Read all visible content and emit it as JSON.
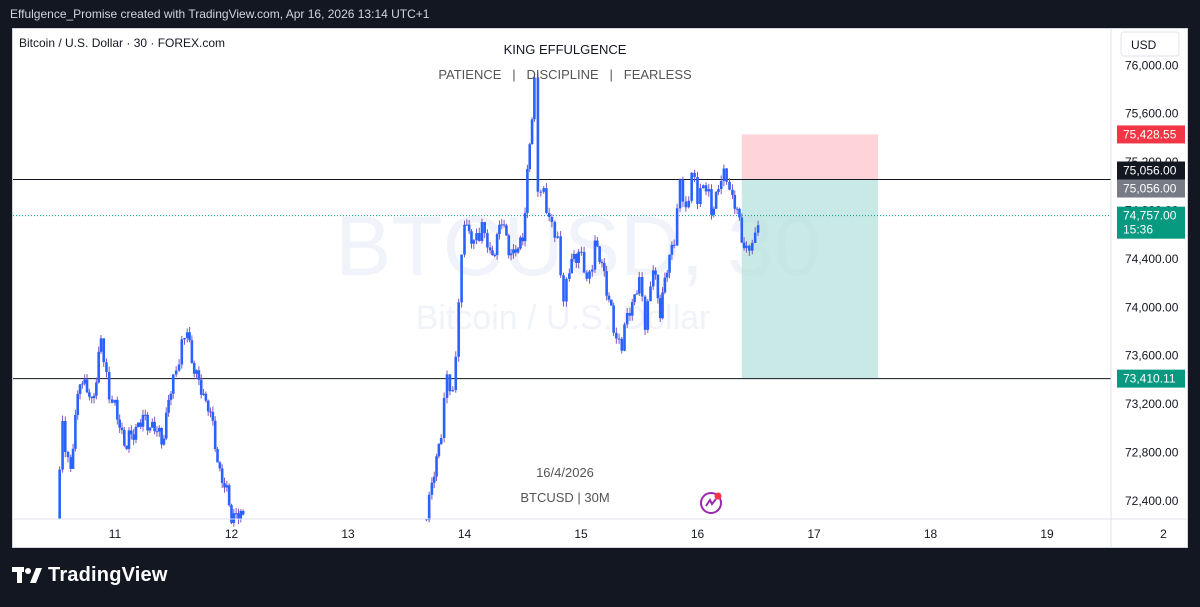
{
  "header": {
    "attribution": "Effulgence_Promise created with TradingView.com, Apr 16, 2026 13:14 UTC+1"
  },
  "symbol_info": "Bitcoin / U.S. Dollar · 30 · FOREX.com",
  "currency_button": "USD",
  "overlay": {
    "title": "KING EFFULGENCE",
    "subtitle": "PATIENCE   |   DISCIPLINE   |   FEARLESS",
    "date": "16/4/2026",
    "symbol_interval": "BTCUSD | 30M"
  },
  "watermark": {
    "ticker": "BTCUSD, 30",
    "name": "Bitcoin / U.S. Dollar"
  },
  "brand": {
    "name": "TradingView"
  },
  "colors": {
    "up": "#2962ff",
    "down": "#2962ff",
    "wick": "#7e57c2",
    "background": "#131722",
    "target_zone": "#b2dfdb",
    "stop_zone": "#ffcdd2",
    "label_red": "#f23645",
    "label_teal": "#089981",
    "label_black": "#131722",
    "label_gray": "#787b86"
  },
  "chart_data": {
    "type": "candlestick",
    "x_axis": {
      "ticks": [
        {
          "label": "11",
          "day": 11
        },
        {
          "label": "12",
          "day": 12
        },
        {
          "label": "13",
          "day": 13
        },
        {
          "label": "14",
          "day": 14
        },
        {
          "label": "15",
          "day": 15
        },
        {
          "label": "16",
          "day": 16
        },
        {
          "label": "17",
          "day": 17
        },
        {
          "label": "18",
          "day": 18
        },
        {
          "label": "19",
          "day": 19
        },
        {
          "label": "2",
          "day": 20
        }
      ]
    },
    "y_axis": {
      "range": [
        72250,
        76300
      ],
      "ticks": [
        {
          "value": 76000,
          "label": "76,000.00"
        },
        {
          "value": 75600,
          "label": "75,600.00"
        },
        {
          "value": 75200,
          "label": "75,200.00"
        },
        {
          "value": 74800,
          "label": "74,800.00"
        },
        {
          "value": 74400,
          "label": "74,400.00"
        },
        {
          "value": 74000,
          "label": "74,000.00"
        },
        {
          "value": 73600,
          "label": "73,600.00"
        },
        {
          "value": 73200,
          "label": "73,200.00"
        },
        {
          "value": 72800,
          "label": "72,800.00"
        },
        {
          "value": 72400,
          "label": "72,400.00"
        }
      ]
    },
    "horizontal_lines": [
      {
        "price": 75056.0
      },
      {
        "price": 73410.11
      }
    ],
    "current_price": {
      "price": 74757.0,
      "label": "74,757.00",
      "countdown": "15:36"
    },
    "price_labels": [
      {
        "price": 75428.55,
        "label": "75,428.55",
        "style": "red"
      },
      {
        "price": 75056.0,
        "label": "75,056.00",
        "style": "black"
      },
      {
        "price": 75056.0,
        "label": "75,056.00",
        "style": "gray"
      },
      {
        "price": 73410.11,
        "label": "73,410.11",
        "style": "teal"
      }
    ],
    "position_tool": {
      "type": "short",
      "entry": 75056.0,
      "stop": 75428.55,
      "target": 73410.11,
      "start_day": 16.38,
      "end_day": 17.55
    },
    "path": [
      [
        10.5,
        72250
      ],
      [
        10.55,
        73000
      ],
      [
        10.62,
        72650
      ],
      [
        10.7,
        73450
      ],
      [
        10.8,
        73200
      ],
      [
        10.88,
        73700
      ],
      [
        10.95,
        73300
      ],
      [
        11.0,
        73150
      ],
      [
        11.1,
        72850
      ],
      [
        11.2,
        73050
      ],
      [
        11.3,
        73050
      ],
      [
        11.4,
        72900
      ],
      [
        11.5,
        73400
      ],
      [
        11.55,
        73600
      ],
      [
        11.62,
        73800
      ],
      [
        11.7,
        73400
      ],
      [
        11.8,
        73200
      ],
      [
        11.9,
        72650
      ],
      [
        12.0,
        72300
      ],
      [
        12.1,
        72250
      ],
      [
        13.65,
        72250
      ],
      [
        13.72,
        72500
      ],
      [
        13.8,
        73000
      ],
      [
        13.85,
        73400
      ],
      [
        13.9,
        73300
      ],
      [
        13.95,
        74000
      ],
      [
        14.0,
        74750
      ],
      [
        14.08,
        74500
      ],
      [
        14.15,
        74700
      ],
      [
        14.22,
        74400
      ],
      [
        14.32,
        74700
      ],
      [
        14.42,
        74400
      ],
      [
        14.5,
        74600
      ],
      [
        14.56,
        75300
      ],
      [
        14.6,
        75900
      ],
      [
        14.63,
        75000
      ],
      [
        14.68,
        74900
      ],
      [
        14.75,
        74700
      ],
      [
        14.8,
        74500
      ],
      [
        14.85,
        74100
      ],
      [
        14.9,
        74300
      ],
      [
        14.98,
        74500
      ],
      [
        15.05,
        74200
      ],
      [
        15.12,
        74500
      ],
      [
        15.2,
        74300
      ],
      [
        15.28,
        73800
      ],
      [
        15.35,
        73700
      ],
      [
        15.42,
        74000
      ],
      [
        15.5,
        74200
      ],
      [
        15.55,
        73900
      ],
      [
        15.62,
        74300
      ],
      [
        15.68,
        74000
      ],
      [
        15.72,
        74200
      ],
      [
        15.8,
        74600
      ],
      [
        15.85,
        75000
      ],
      [
        15.9,
        74800
      ],
      [
        15.95,
        75100
      ],
      [
        16.0,
        74900
      ],
      [
        16.05,
        75050
      ],
      [
        16.12,
        74800
      ],
      [
        16.18,
        75000
      ],
      [
        16.25,
        75100
      ],
      [
        16.3,
        74900
      ],
      [
        16.36,
        74700
      ],
      [
        16.42,
        74450
      ],
      [
        16.47,
        74500
      ],
      [
        16.52,
        74757
      ]
    ]
  }
}
